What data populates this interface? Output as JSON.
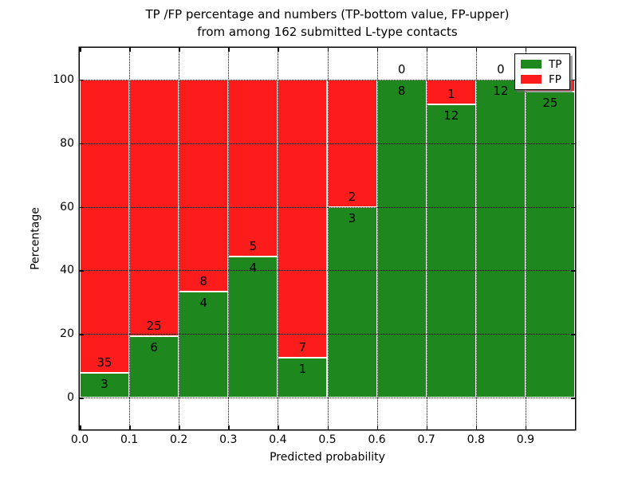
{
  "title": {
    "line1": "TP /FP percentage and numbers (TP-bottom value, FP-upper)",
    "line2": "from among 162 submitted L-type contacts"
  },
  "axes": {
    "xlabel": "Predicted probability",
    "ylabel": "Percentage",
    "xticks": [
      {
        "label": "0.0",
        "value": 0.0
      },
      {
        "label": "0.1",
        "value": 0.1
      },
      {
        "label": "0.2",
        "value": 0.2
      },
      {
        "label": "0.3",
        "value": 0.3
      },
      {
        "label": "0.4",
        "value": 0.4
      },
      {
        "label": "0.5",
        "value": 0.5
      },
      {
        "label": "0.6",
        "value": 0.6
      },
      {
        "label": "0.7",
        "value": 0.7
      },
      {
        "label": "0.8",
        "value": 0.8
      },
      {
        "label": "0.9",
        "value": 0.9
      }
    ],
    "yticks": [
      {
        "label": "0",
        "value": 0
      },
      {
        "label": "20",
        "value": 20
      },
      {
        "label": "40",
        "value": 40
      },
      {
        "label": "60",
        "value": 60
      },
      {
        "label": "80",
        "value": 80
      },
      {
        "label": "100",
        "value": 100
      }
    ],
    "xlim": [
      0.0,
      1.0
    ],
    "ylim": [
      -10,
      110
    ]
  },
  "legend": {
    "items": [
      {
        "label": "TP",
        "color": "#1e871e"
      },
      {
        "label": "FP",
        "color": "#fc1c1c"
      }
    ],
    "position": "upper right"
  },
  "chart_data": {
    "type": "bar",
    "stacked": true,
    "normalized_to_percent": true,
    "title": "TP /FP percentage and numbers (TP-bottom value, FP-upper) from among 162 submitted L-type contacts",
    "xlabel": "Predicted probability",
    "ylabel": "Percentage",
    "xlim": [
      0.0,
      1.0
    ],
    "ylim": [
      -10,
      110
    ],
    "grid": "dotted black, horizontal every 20%, vertical every 0.1",
    "legend_position": "upper right",
    "bin_width": 0.1,
    "total_contacts": 162,
    "bars": [
      {
        "bin_start": 0.0,
        "tp": 3,
        "fp": 35
      },
      {
        "bin_start": 0.1,
        "tp": 6,
        "fp": 25
      },
      {
        "bin_start": 0.2,
        "tp": 4,
        "fp": 8
      },
      {
        "bin_start": 0.3,
        "tp": 4,
        "fp": 5
      },
      {
        "bin_start": 0.4,
        "tp": 1,
        "fp": 7
      },
      {
        "bin_start": 0.5,
        "tp": 3,
        "fp": 2
      },
      {
        "bin_start": 0.6,
        "tp": 8,
        "fp": 0
      },
      {
        "bin_start": 0.7,
        "tp": 12,
        "fp": 1
      },
      {
        "bin_start": 0.8,
        "tp": 12,
        "fp": 0
      },
      {
        "bin_start": 0.9,
        "tp": 25,
        "fp": 1
      }
    ],
    "series": [
      {
        "name": "TP",
        "color": "#1e871e",
        "counts": [
          3,
          6,
          4,
          4,
          1,
          3,
          8,
          12,
          12,
          25
        ]
      },
      {
        "name": "FP",
        "color": "#fc1c1c",
        "counts": [
          35,
          25,
          8,
          5,
          7,
          2,
          0,
          1,
          0,
          1
        ]
      }
    ],
    "tp_percent": [
      7.9,
      19.4,
      33.3,
      44.4,
      12.5,
      60.0,
      100.0,
      92.3,
      100.0,
      96.2
    ]
  }
}
